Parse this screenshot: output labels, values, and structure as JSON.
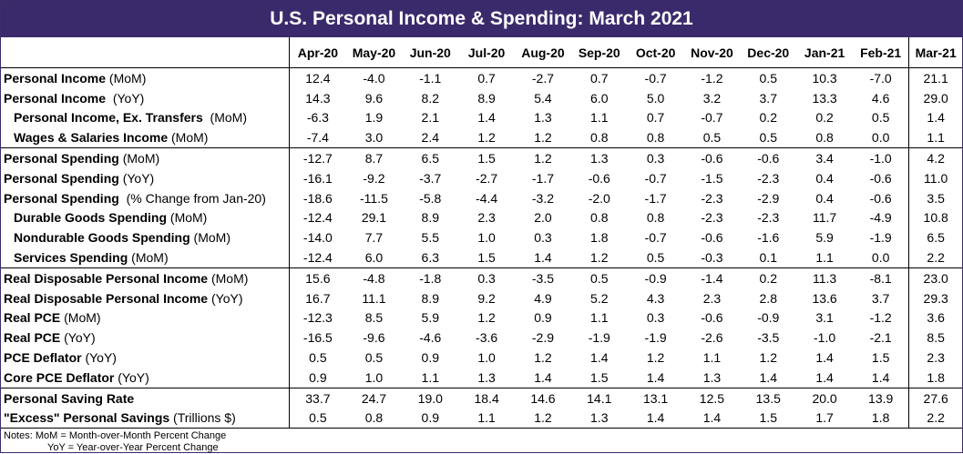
{
  "title": "U.S. Personal Income & Spending: March 2021",
  "columns": [
    "Apr-20",
    "May-20",
    "Jun-20",
    "Jul-20",
    "Aug-20",
    "Sep-20",
    "Oct-20",
    "Nov-20",
    "Dec-20",
    "Jan-21",
    "Feb-21",
    "Mar-21"
  ],
  "groups": [
    [
      {
        "bold": "Personal Income",
        "rest": " (MoM)",
        "indent": false,
        "values": [
          "12.4",
          "-4.0",
          "-1.1",
          "0.7",
          "-2.7",
          "0.7",
          "-0.7",
          "-1.2",
          "0.5",
          "10.3",
          "-7.0",
          "21.1"
        ]
      },
      {
        "bold": "Personal Income",
        "rest": "  (YoY)",
        "indent": false,
        "values": [
          "14.3",
          "9.6",
          "8.2",
          "8.9",
          "5.4",
          "6.0",
          "5.0",
          "3.2",
          "3.7",
          "13.3",
          "4.6",
          "29.0"
        ]
      },
      {
        "bold": "Personal Income, Ex. Transfers",
        "rest": "  (MoM)",
        "indent": true,
        "values": [
          "-6.3",
          "1.9",
          "2.1",
          "1.4",
          "1.3",
          "1.1",
          "0.7",
          "-0.7",
          "0.2",
          "0.2",
          "0.5",
          "1.4"
        ]
      },
      {
        "bold": "Wages & Salaries Income",
        "rest": " (MoM)",
        "indent": true,
        "values": [
          "-7.4",
          "3.0",
          "2.4",
          "1.2",
          "1.2",
          "0.8",
          "0.8",
          "0.5",
          "0.5",
          "0.8",
          "0.0",
          "1.1"
        ]
      }
    ],
    [
      {
        "bold": "Personal Spending",
        "rest": " (MoM)",
        "indent": false,
        "values": [
          "-12.7",
          "8.7",
          "6.5",
          "1.5",
          "1.2",
          "1.3",
          "0.3",
          "-0.6",
          "-0.6",
          "3.4",
          "-1.0",
          "4.2"
        ]
      },
      {
        "bold": "Personal Spending",
        "rest": " (YoY)",
        "indent": false,
        "values": [
          "-16.1",
          "-9.2",
          "-3.7",
          "-2.7",
          "-1.7",
          "-0.6",
          "-0.7",
          "-1.5",
          "-2.3",
          "0.4",
          "-0.6",
          "11.0"
        ]
      },
      {
        "bold": "Personal Spending",
        "rest": "  (% Change from Jan-20)",
        "indent": false,
        "values": [
          "-18.6",
          "-11.5",
          "-5.8",
          "-4.4",
          "-3.2",
          "-2.0",
          "-1.7",
          "-2.3",
          "-2.9",
          "0.4",
          "-0.6",
          "3.5"
        ]
      },
      {
        "bold": "Durable Goods Spending",
        "rest": " (MoM)",
        "indent": true,
        "values": [
          "-12.4",
          "29.1",
          "8.9",
          "2.3",
          "2.0",
          "0.8",
          "0.8",
          "-2.3",
          "-2.3",
          "11.7",
          "-4.9",
          "10.8"
        ]
      },
      {
        "bold": "Nondurable Goods Spending",
        "rest": " (MoM)",
        "indent": true,
        "values": [
          "-14.0",
          "7.7",
          "5.5",
          "1.0",
          "0.3",
          "1.8",
          "-0.7",
          "-0.6",
          "-1.6",
          "5.9",
          "-1.9",
          "6.5"
        ]
      },
      {
        "bold": "Services Spending",
        "rest": " (MoM)",
        "indent": true,
        "values": [
          "-12.4",
          "6.0",
          "6.3",
          "1.5",
          "1.4",
          "1.2",
          "0.5",
          "-0.3",
          "0.1",
          "1.1",
          "0.0",
          "2.2"
        ]
      }
    ],
    [
      {
        "bold": "Real Disposable Personal Income",
        "rest": " (MoM)",
        "indent": false,
        "values": [
          "15.6",
          "-4.8",
          "-1.8",
          "0.3",
          "-3.5",
          "0.5",
          "-0.9",
          "-1.4",
          "0.2",
          "11.3",
          "-8.1",
          "23.0"
        ]
      },
      {
        "bold": "Real Disposable Personal Income",
        "rest": " (YoY)",
        "indent": false,
        "values": [
          "16.7",
          "11.1",
          "8.9",
          "9.2",
          "4.9",
          "5.2",
          "4.3",
          "2.3",
          "2.8",
          "13.6",
          "3.7",
          "29.3"
        ]
      },
      {
        "bold": "Real PCE",
        "rest": " (MoM)",
        "indent": false,
        "values": [
          "-12.3",
          "8.5",
          "5.9",
          "1.2",
          "0.9",
          "1.1",
          "0.3",
          "-0.6",
          "-0.9",
          "3.1",
          "-1.2",
          "3.6"
        ]
      },
      {
        "bold": "Real PCE",
        "rest": " (YoY)",
        "indent": false,
        "values": [
          "-16.5",
          "-9.6",
          "-4.6",
          "-3.6",
          "-2.9",
          "-1.9",
          "-1.9",
          "-2.6",
          "-3.5",
          "-1.0",
          "-2.1",
          "8.5"
        ]
      },
      {
        "bold": "PCE Deflator",
        "rest": " (YoY)",
        "indent": false,
        "values": [
          "0.5",
          "0.5",
          "0.9",
          "1.0",
          "1.2",
          "1.4",
          "1.2",
          "1.1",
          "1.2",
          "1.4",
          "1.5",
          "2.3"
        ]
      },
      {
        "bold": "Core PCE Deflator",
        "rest": " (YoY)",
        "indent": false,
        "values": [
          "0.9",
          "1.0",
          "1.1",
          "1.3",
          "1.4",
          "1.5",
          "1.4",
          "1.3",
          "1.4",
          "1.4",
          "1.4",
          "1.8"
        ]
      }
    ],
    [
      {
        "bold": "Personal Saving Rate",
        "rest": "",
        "indent": false,
        "values": [
          "33.7",
          "24.7",
          "19.0",
          "18.4",
          "14.6",
          "14.1",
          "13.1",
          "12.5",
          "13.5",
          "20.0",
          "13.9",
          "27.6"
        ]
      },
      {
        "bold": "\"Excess\" Personal Savings",
        "rest": " (Trillions $)",
        "indent": false,
        "values": [
          "0.5",
          "0.8",
          "0.9",
          "1.1",
          "1.2",
          "1.3",
          "1.4",
          "1.4",
          "1.5",
          "1.7",
          "1.8",
          "2.2"
        ]
      }
    ]
  ],
  "notes": {
    "line1": "Notes:   MoM = Month-over-Month Percent Change",
    "line2": "YoY = Year-over-Year Percent Change"
  }
}
